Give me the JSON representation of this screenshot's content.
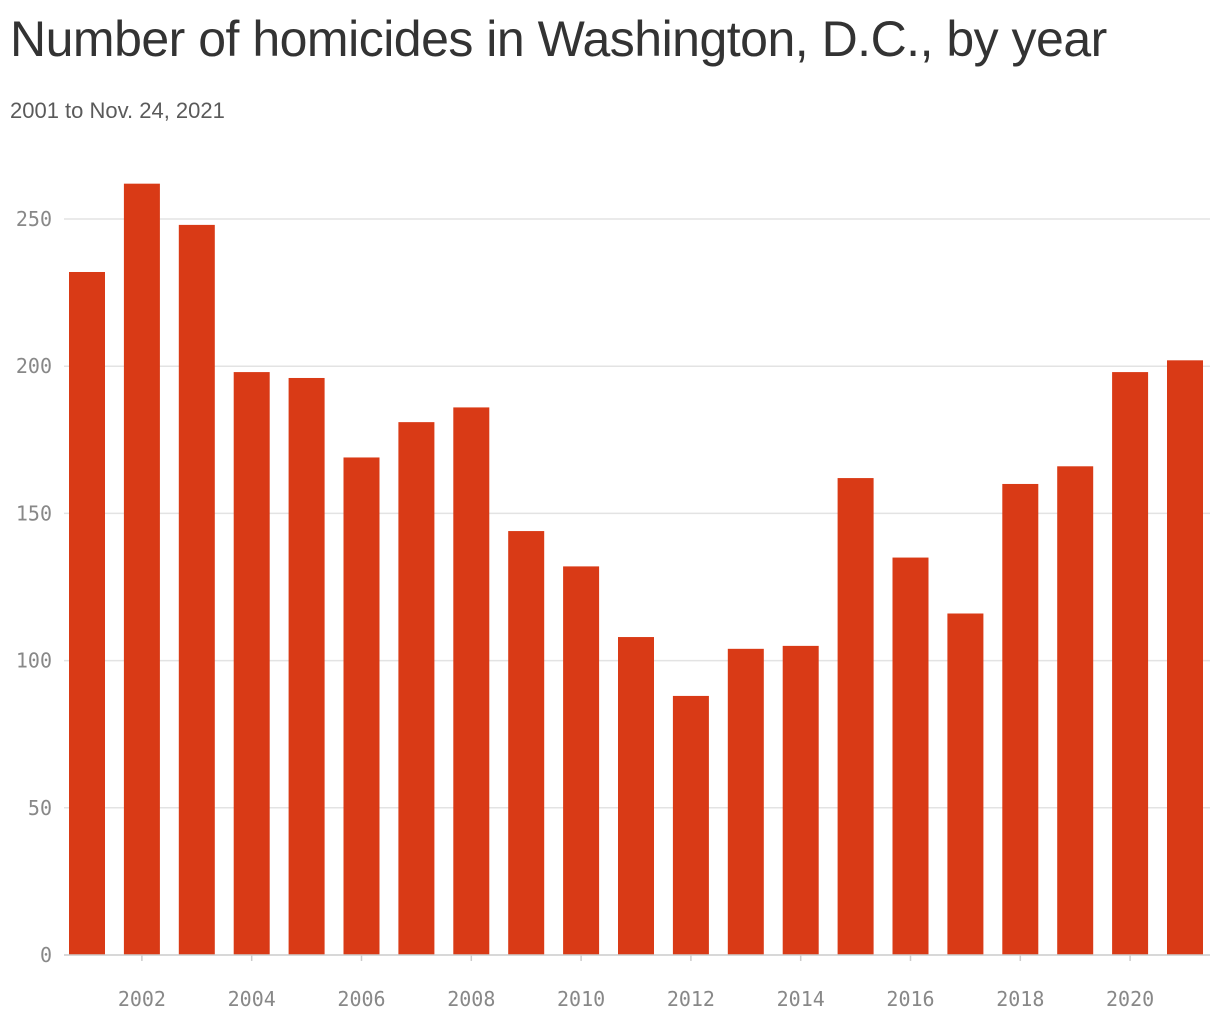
{
  "header": {
    "title": "Number of homicides in Washington, D.C., by year",
    "subtitle": "2001 to Nov. 24, 2021"
  },
  "colors": {
    "bar": "#d93a16",
    "grid": "#e3e3e3",
    "axis": "#cccccc",
    "tick_text": "#888888"
  },
  "chart_data": {
    "type": "bar",
    "title": "Number of homicides in Washington, D.C., by year",
    "subtitle": "2001 to Nov. 24, 2021",
    "xlabel": "",
    "ylabel": "",
    "categories": [
      "2001",
      "2002",
      "2003",
      "2004",
      "2005",
      "2006",
      "2007",
      "2008",
      "2009",
      "2010",
      "2011",
      "2012",
      "2013",
      "2014",
      "2015",
      "2016",
      "2017",
      "2018",
      "2019",
      "2020",
      "2021"
    ],
    "values": [
      232,
      262,
      248,
      198,
      196,
      169,
      181,
      186,
      144,
      132,
      108,
      88,
      104,
      105,
      162,
      135,
      116,
      160,
      166,
      198,
      202
    ],
    "ylim": [
      0,
      270
    ],
    "yticks": [
      0,
      50,
      100,
      150,
      200,
      250
    ],
    "xtick_labels": [
      "2002",
      "2004",
      "2006",
      "2008",
      "2010",
      "2012",
      "2014",
      "2016",
      "2018",
      "2020"
    ],
    "grid": "horizontal",
    "legend": "none"
  }
}
